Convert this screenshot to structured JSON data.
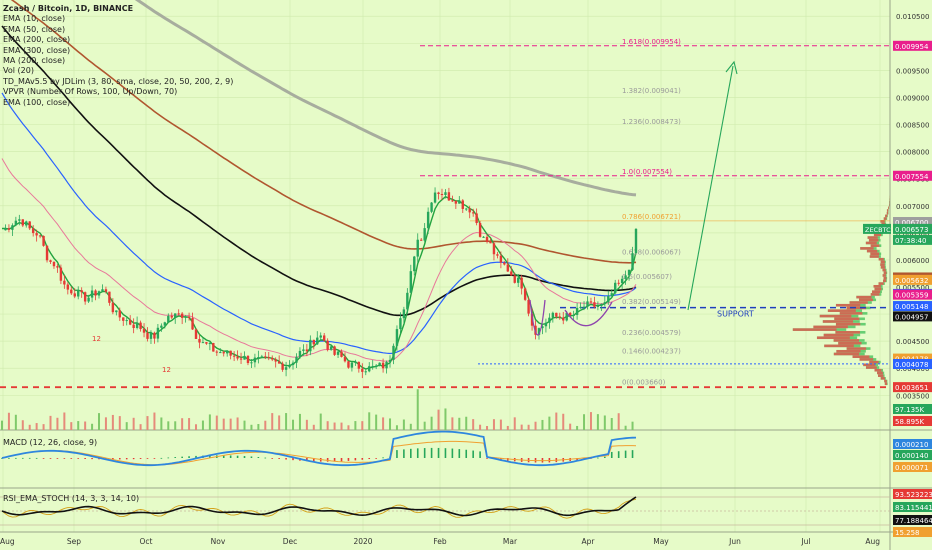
{
  "chart_data": {
    "type": "candlestick",
    "title": "Zcash / Bitcoin, 1D, BINANCE",
    "indicators": [
      "EMA (10, close)",
      "EMA (50, close)",
      "EMA (200, close)",
      "EMA (300, close)",
      "MA (200, close)",
      "Vol (20)",
      "TD_MAv5.5 by JDLim (3, 80, sma, close, 20, 50, 200, 2, 9)",
      "VPVR (Number Of Rows, 100, Up/Down, 70)",
      "EMA (100, close)"
    ],
    "x_labels": [
      "Aug",
      "Sep",
      "Oct",
      "Nov",
      "Dec",
      "2020",
      "Feb",
      "Mar",
      "Apr",
      "May",
      "Jun",
      "Jul",
      "Aug"
    ],
    "y_ticks": [
      "0.010500",
      "0.010000",
      "0.009500",
      "0.009000",
      "0.008500",
      "0.008000",
      "0.007500",
      "0.007000",
      "0.006500",
      "0.006000",
      "0.005500",
      "0.005000",
      "0.004500",
      "0.004000",
      "0.003500"
    ],
    "ylim": [
      0.00345,
      0.0108
    ],
    "price_path": [
      [
        0.0063,
        0.0068
      ],
      [
        0.0066,
        0.0069
      ],
      [
        0.0064,
        0.0066
      ],
      [
        0.0058,
        0.0061
      ],
      [
        0.0053,
        0.0056
      ],
      [
        0.0052,
        0.0054
      ],
      [
        0.0055,
        0.0054
      ],
      [
        0.0051,
        0.0048
      ],
      [
        0.0049,
        0.0047
      ],
      [
        0.0046,
        0.00455
      ],
      [
        0.0047,
        0.0052
      ],
      [
        0.0051,
        0.0049
      ],
      [
        0.0045,
        0.0044
      ],
      [
        0.0044,
        0.0042
      ],
      [
        0.0043,
        0.00415
      ],
      [
        0.0042,
        0.0041
      ],
      [
        0.0042,
        0.00405
      ],
      [
        0.0041,
        0.004
      ],
      [
        0.0042,
        0.0044
      ],
      [
        0.0045,
        0.0047
      ],
      [
        0.0043,
        0.0042
      ],
      [
        0.0041,
        0.004
      ],
      [
        0.004,
        0.004
      ],
      [
        0.004,
        0.0041
      ],
      [
        0.0046,
        0.0055
      ],
      [
        0.006,
        0.0068
      ],
      [
        0.0071,
        0.00745
      ],
      [
        0.0071,
        0.0072
      ],
      [
        0.007,
        0.0069
      ],
      [
        0.0065,
        0.0062
      ],
      [
        0.006,
        0.0058
      ],
      [
        0.0057,
        0.0055
      ],
      [
        0.005,
        0.0044
      ],
      [
        0.0048,
        0.0051
      ],
      [
        0.005,
        0.0049
      ],
      [
        0.0052,
        0.0051
      ],
      [
        0.0051,
        0.0052
      ],
      [
        0.0055,
        0.0056
      ],
      [
        0.0057,
        0.0065
      ]
    ],
    "levels": [
      {
        "label": "1.618(0.009954)",
        "price": 0.009954,
        "color": "#e91e8c",
        "style": "dashed",
        "tag": "0.009954"
      },
      {
        "label": "1.382(0.009041)",
        "price": 0.009041,
        "color": "#aaaaaa",
        "style": "none"
      },
      {
        "label": "1.236(0.008473)",
        "price": 0.008473,
        "color": "#aaaaaa",
        "style": "none"
      },
      {
        "label": "1.0(0.007554)",
        "price": 0.007554,
        "color": "#e91e8c",
        "style": "dashed",
        "tag": "0.007554"
      },
      {
        "label": "0.786(0.006721)",
        "price": 0.006721,
        "color": "#f0a030",
        "style": "solid-thin"
      },
      {
        "label": "0.618(0.006067)",
        "price": 0.006067,
        "color": "#aaaaaa",
        "style": "none"
      },
      {
        "label": "0.5(0.005607)",
        "price": 0.005607,
        "color": "#aaaaaa",
        "style": "none"
      },
      {
        "label": "0.382(0.005149)",
        "price": 0.005149,
        "color": "#aaaaaa",
        "style": "none"
      },
      {
        "label": "0.236(0.004579)",
        "price": 0.004579,
        "color": "#aaaaaa",
        "style": "none"
      },
      {
        "label": "0.146(0.004237)",
        "price": 0.004237,
        "color": "#aaaaaa",
        "style": "none"
      },
      {
        "label": "0(0.003660)",
        "price": 0.00366,
        "color": "#aaaaaa",
        "style": "none"
      }
    ],
    "support": {
      "label": "SUPPORT",
      "price": 0.00512
    },
    "dotted_low": 0.00408,
    "red_low": 0.00365,
    "price_tags": [
      {
        "text": "0.010500",
        "price": 0.0105,
        "color": "none"
      },
      {
        "text": "0.009954",
        "price": 0.009954,
        "color": "#e91e8c"
      },
      {
        "text": "0.007554",
        "price": 0.007554,
        "color": "#e91e8c"
      },
      {
        "text": "0.006700",
        "price": 0.0067,
        "color": "#9e9e9e"
      },
      {
        "text": "0.006573",
        "price": 0.006573,
        "color": "#26a65b",
        "extra": "ZECBTC"
      },
      {
        "text": "07:38:40",
        "price": 0.00637,
        "color": "#26a65b"
      },
      {
        "text": "0.005676",
        "price": 0.005676,
        "color": "#b0562f"
      },
      {
        "text": "0.005632",
        "price": 0.005632,
        "color": "#f0a030"
      },
      {
        "text": "0.005372",
        "price": 0.005372,
        "color": "#2962ff"
      },
      {
        "text": "0.005359",
        "price": 0.005359,
        "color": "#e91e8c"
      },
      {
        "text": "0.005148",
        "price": 0.005148,
        "color": "#2962ff"
      },
      {
        "text": "0.004957",
        "price": 0.004957,
        "color": "#111111"
      },
      {
        "text": "0.004178",
        "price": 0.004178,
        "color": "#f0a030"
      },
      {
        "text": "0.004078",
        "price": 0.004078,
        "color": "#2962ff"
      },
      {
        "text": "0.003651",
        "price": 0.003651,
        "color": "#e53935"
      }
    ],
    "volume_tags": [
      "97.135K",
      "58.895K"
    ],
    "macd": {
      "label": "MACD (12, 26, close, 9)",
      "tags": [
        "0.000210",
        "0.000140",
        "0.000071"
      ]
    },
    "rsi": {
      "label": "RSI_EMA_STOCH (14, 3, 3, 14, 10)",
      "tags": [
        "93.523223",
        "83.115441",
        "77.188464",
        "15.258"
      ]
    },
    "annotations": [
      "12",
      "12"
    ],
    "colors": {
      "up": "#26a65b",
      "down": "#e53935",
      "ema10": "#e8789a",
      "ema50": "#2962ff",
      "ema100": "#8e44ad",
      "ema200": "#111111",
      "ma200": "#9e8a8a",
      "ema300": "#b0562f",
      "arrow": "#26a65b"
    }
  }
}
